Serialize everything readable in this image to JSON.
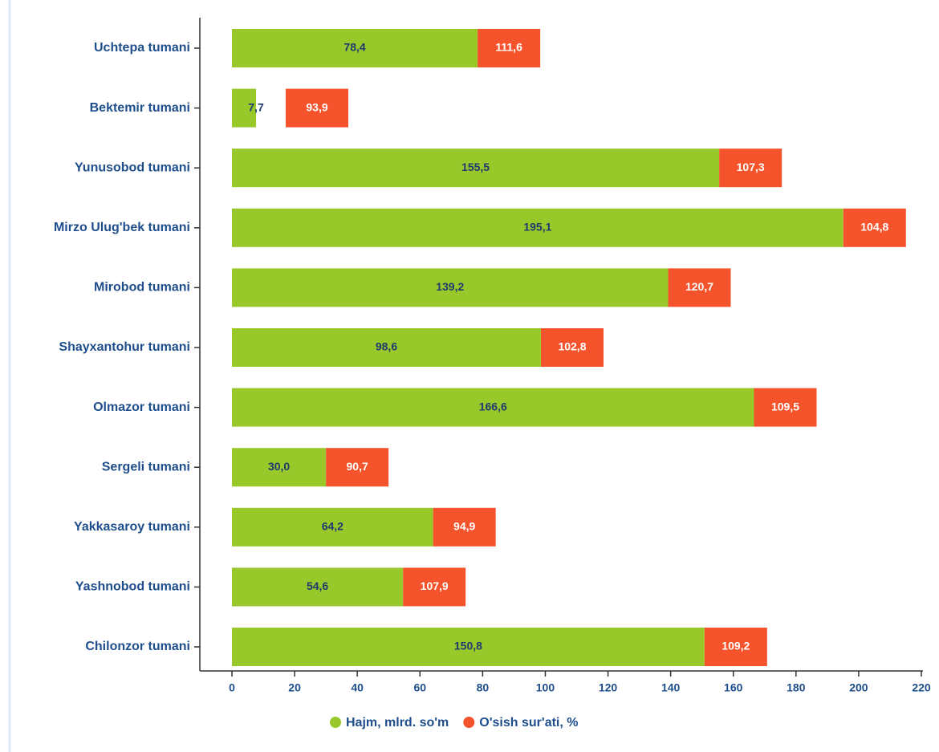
{
  "chart_data": {
    "type": "bar",
    "orientation": "horizontal",
    "categories": [
      "Uchtepa tumani",
      "Bektemir tumani",
      "Yunusobod tumani",
      "Mirzo Ulug'bek tumani",
      "Mirobod tumani",
      "Shayxantohur tumani",
      "Olmazor tumani",
      "Sergeli tumani",
      "Yakkasaroy tumani",
      "Yashnobod tumani",
      "Chilonzor tumani"
    ],
    "series": [
      {
        "name": "Hajm, mlrd. so'm",
        "color": "#99c82a",
        "values": [
          78.4,
          7.7,
          155.5,
          195.1,
          139.2,
          98.6,
          166.6,
          30.0,
          64.2,
          54.6,
          150.8
        ],
        "value_labels": [
          "78,4",
          "7,7",
          "155,5",
          "195,1",
          "139,2",
          "98,6",
          "166,6",
          "30,0",
          "64,2",
          "54,6",
          "150,8"
        ]
      },
      {
        "name": "O'sish sur'ati, %",
        "color": "#f4532b",
        "values": [
          111.6,
          93.9,
          107.3,
          104.8,
          120.7,
          102.8,
          109.5,
          90.7,
          94.9,
          107.9,
          109.2
        ],
        "value_labels": [
          "111,6",
          "93,9",
          "107,3",
          "104,8",
          "120,7",
          "102,8",
          "109,5",
          "90,7",
          "94,9",
          "107,9",
          "109,2"
        ]
      }
    ],
    "xlim": [
      0,
      220
    ],
    "xticks": [
      0,
      20,
      40,
      60,
      80,
      100,
      120,
      140,
      160,
      180,
      200,
      220
    ],
    "legend": "bottom"
  }
}
